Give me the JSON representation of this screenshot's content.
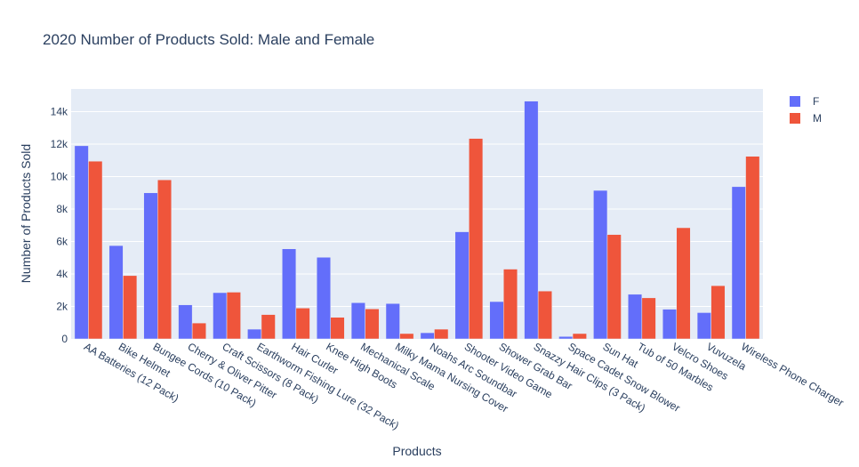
{
  "chart_data": {
    "type": "bar",
    "title": "2020 Number of Products Sold: Male and Female",
    "xlabel": "Products",
    "ylabel": "Number of Products Sold",
    "ylim": [
      0,
      15400
    ],
    "yticks": [
      0,
      2000,
      4000,
      6000,
      8000,
      10000,
      12000,
      14000
    ],
    "ytick_labels": [
      "0",
      "2k",
      "4k",
      "6k",
      "8k",
      "10k",
      "12k",
      "14k"
    ],
    "grid": true,
    "legend_position": "top-right",
    "categories": [
      "AA Batteries (12 Pack)",
      "Bike Helmet",
      "Bungee Cords (10 Pack)",
      "Cherry & Oliver Pitter",
      "Craft Scissors (8 Pack)",
      "Earthworm Fishing Lure (32 Pack)",
      "Hair Curler",
      "Knee High Boots",
      "Mechanical Scale",
      "Milky Mama Nursing Cover",
      "Noahs Arc Soundbar",
      "Shooter Video Game",
      "Shower Grab Bar",
      "Snazzy Hair Clips (3 Pack)",
      "Space Cadet Snow Blower",
      "Sun Hat",
      "Tub of 50 Marbles",
      "Velcro Shoes",
      "Vuvuzela",
      "Wireless Phone Charger"
    ],
    "series": [
      {
        "name": "F",
        "color": "#636efa",
        "values": [
          11900,
          5750,
          9000,
          2100,
          2850,
          600,
          5550,
          5030,
          2230,
          2180,
          380,
          6600,
          2300,
          14650,
          150,
          9150,
          2750,
          1830,
          1620,
          9380
        ]
      },
      {
        "name": "M",
        "color": "#ef553b",
        "values": [
          10950,
          3900,
          9800,
          980,
          2880,
          1500,
          1900,
          1330,
          1850,
          330,
          600,
          12350,
          4300,
          2950,
          330,
          6430,
          2530,
          6850,
          3280,
          11250
        ]
      }
    ]
  },
  "style": {
    "plot_bg": "#e5ecf6",
    "grid_color": "#ffffff"
  }
}
